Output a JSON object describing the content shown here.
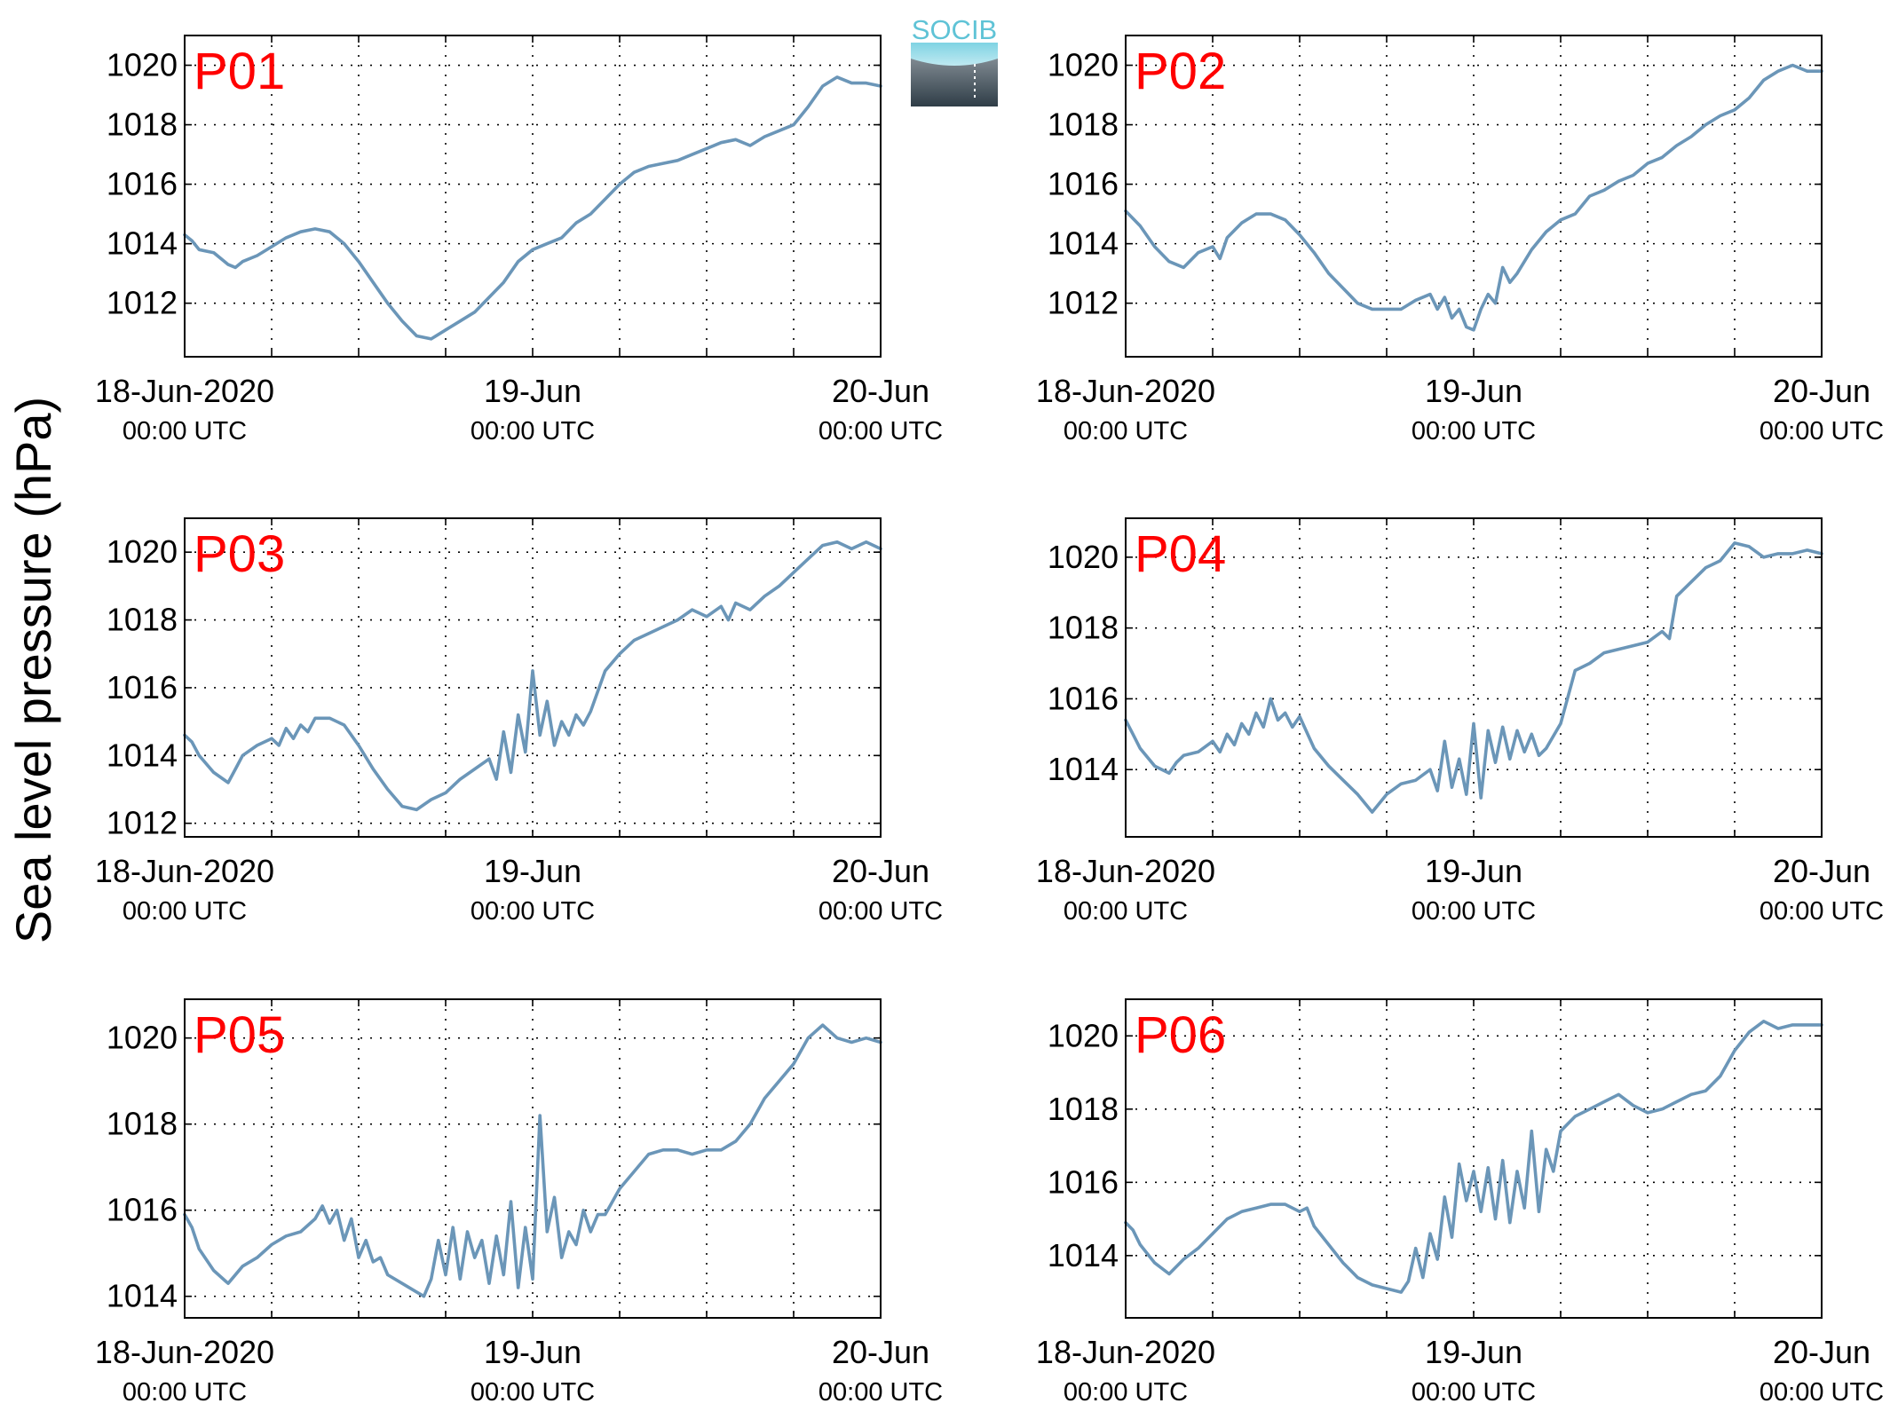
{
  "figure": {
    "ylabel": "Sea level pressure (hPa)",
    "logo_text": "SOCIB",
    "line_color": "#6b96b8",
    "label_color": "#ff0000",
    "logo_text_color": "#5fc3d6"
  },
  "chart_data": [
    {
      "type": "line",
      "panel_label": "P01",
      "xlim": [
        0,
        48
      ],
      "ylim": [
        1010.2,
        1021
      ],
      "yticks": [
        1012,
        1014,
        1016,
        1018,
        1020
      ],
      "xticks": [
        {
          "x": 0,
          "line1": "18-Jun-2020",
          "line2": "00:00 UTC"
        },
        {
          "x": 24,
          "line1": "19-Jun",
          "line2": "00:00 UTC"
        },
        {
          "x": 48,
          "line1": "20-Jun",
          "line2": "00:00 UTC"
        }
      ],
      "grid": true,
      "x": [
        0,
        0.5,
        1,
        2,
        3,
        3.5,
        4,
        5,
        6,
        7,
        8,
        9,
        10,
        11,
        12,
        13,
        14,
        15,
        16,
        17,
        18,
        19,
        20,
        21,
        22,
        23,
        24,
        25,
        26,
        27,
        28,
        29,
        30,
        31,
        32,
        33,
        34,
        35,
        36,
        37,
        38,
        39,
        40,
        41,
        42,
        43,
        44,
        45,
        46,
        47,
        48
      ],
      "y": [
        1014.3,
        1014.1,
        1013.8,
        1013.7,
        1013.3,
        1013.2,
        1013.4,
        1013.6,
        1013.9,
        1014.2,
        1014.4,
        1014.5,
        1014.4,
        1014.0,
        1013.4,
        1012.7,
        1012.0,
        1011.4,
        1010.9,
        1010.8,
        1011.1,
        1011.4,
        1011.7,
        1012.2,
        1012.7,
        1013.4,
        1013.8,
        1014.0,
        1014.2,
        1014.7,
        1015.0,
        1015.5,
        1016.0,
        1016.4,
        1016.6,
        1016.7,
        1016.8,
        1017.0,
        1017.2,
        1017.4,
        1017.5,
        1017.3,
        1017.6,
        1017.8,
        1018.0,
        1018.6,
        1019.3,
        1019.6,
        1019.4,
        1019.4,
        1019.3
      ]
    },
    {
      "type": "line",
      "panel_label": "P02",
      "xlim": [
        0,
        48
      ],
      "ylim": [
        1010.2,
        1021
      ],
      "yticks": [
        1012,
        1014,
        1016,
        1018,
        1020
      ],
      "xticks": [
        {
          "x": 0,
          "line1": "18-Jun-2020",
          "line2": "00:00 UTC"
        },
        {
          "x": 24,
          "line1": "19-Jun",
          "line2": "00:00 UTC"
        },
        {
          "x": 48,
          "line1": "20-Jun",
          "line2": "00:00 UTC"
        }
      ],
      "grid": true,
      "x": [
        0,
        1,
        2,
        3,
        4,
        5,
        6,
        6.5,
        7,
        8,
        9,
        10,
        11,
        12,
        13,
        14,
        15,
        16,
        17,
        18,
        19,
        20,
        21,
        21.5,
        22,
        22.5,
        23,
        23.5,
        24,
        24.5,
        25,
        25.5,
        26,
        26.5,
        27,
        28,
        29,
        30,
        31,
        32,
        33,
        34,
        35,
        36,
        37,
        38,
        39,
        40,
        41,
        42,
        43,
        44,
        45,
        46,
        47,
        48
      ],
      "y": [
        1015.1,
        1014.6,
        1013.9,
        1013.4,
        1013.2,
        1013.7,
        1013.9,
        1013.5,
        1014.2,
        1014.7,
        1015.0,
        1015.0,
        1014.8,
        1014.3,
        1013.7,
        1013.0,
        1012.5,
        1012.0,
        1011.8,
        1011.8,
        1011.8,
        1012.1,
        1012.3,
        1011.8,
        1012.2,
        1011.5,
        1011.8,
        1011.2,
        1011.1,
        1011.8,
        1012.3,
        1012.0,
        1013.2,
        1012.7,
        1013.0,
        1013.8,
        1014.4,
        1014.8,
        1015.0,
        1015.6,
        1015.8,
        1016.1,
        1016.3,
        1016.7,
        1016.9,
        1017.3,
        1017.6,
        1018.0,
        1018.3,
        1018.5,
        1018.9,
        1019.5,
        1019.8,
        1020.0,
        1019.8,
        1019.8
      ]
    },
    {
      "type": "line",
      "panel_label": "P03",
      "xlim": [
        0,
        48
      ],
      "ylim": [
        1011.6,
        1021
      ],
      "yticks": [
        1012,
        1014,
        1016,
        1018,
        1020
      ],
      "xticks": [
        {
          "x": 0,
          "line1": "18-Jun-2020",
          "line2": "00:00 UTC"
        },
        {
          "x": 24,
          "line1": "19-Jun",
          "line2": "00:00 UTC"
        },
        {
          "x": 48,
          "line1": "20-Jun",
          "line2": "00:00 UTC"
        }
      ],
      "grid": true,
      "x": [
        0,
        0.5,
        1,
        2,
        3,
        3.5,
        4,
        5,
        6,
        6.5,
        7,
        7.5,
        8,
        8.5,
        9,
        10,
        11,
        12,
        13,
        14,
        15,
        16,
        17,
        18,
        19,
        20,
        21,
        21.5,
        22,
        22.5,
        23,
        23.5,
        24,
        24.5,
        25,
        25.5,
        26,
        26.5,
        27,
        27.5,
        28,
        29,
        30,
        31,
        32,
        33,
        34,
        35,
        36,
        37,
        37.5,
        38,
        39,
        40,
        41,
        42,
        43,
        44,
        45,
        46,
        47,
        48
      ],
      "y": [
        1014.6,
        1014.4,
        1014.0,
        1013.5,
        1013.2,
        1013.6,
        1014.0,
        1014.3,
        1014.5,
        1014.3,
        1014.8,
        1014.5,
        1014.9,
        1014.7,
        1015.1,
        1015.1,
        1014.9,
        1014.3,
        1013.6,
        1013.0,
        1012.5,
        1012.4,
        1012.7,
        1012.9,
        1013.3,
        1013.6,
        1013.9,
        1013.3,
        1014.7,
        1013.5,
        1015.2,
        1014.1,
        1016.5,
        1014.6,
        1015.6,
        1014.3,
        1015.0,
        1014.6,
        1015.2,
        1014.9,
        1015.3,
        1016.5,
        1017.0,
        1017.4,
        1017.6,
        1017.8,
        1018.0,
        1018.3,
        1018.1,
        1018.4,
        1018.0,
        1018.5,
        1018.3,
        1018.7,
        1019.0,
        1019.4,
        1019.8,
        1020.2,
        1020.3,
        1020.1,
        1020.3,
        1020.1
      ]
    },
    {
      "type": "line",
      "panel_label": "P04",
      "xlim": [
        0,
        48
      ],
      "ylim": [
        1012.1,
        1021.1
      ],
      "yticks": [
        1014,
        1016,
        1018,
        1020
      ],
      "xticks": [
        {
          "x": 0,
          "line1": "18-Jun-2020",
          "line2": "00:00 UTC"
        },
        {
          "x": 24,
          "line1": "19-Jun",
          "line2": "00:00 UTC"
        },
        {
          "x": 48,
          "line1": "20-Jun",
          "line2": "00:00 UTC"
        }
      ],
      "grid": true,
      "x": [
        0,
        0.5,
        1,
        2,
        3,
        3.5,
        4,
        5,
        6,
        6.5,
        7,
        7.5,
        8,
        8.5,
        9,
        9.5,
        10,
        10.5,
        11,
        11.5,
        12,
        13,
        14,
        15,
        16,
        17,
        18,
        19,
        20,
        21,
        21.5,
        22,
        22.5,
        23,
        23.5,
        24,
        24.5,
        25,
        25.5,
        26,
        26.5,
        27,
        27.5,
        28,
        28.5,
        29,
        30,
        31,
        32,
        33,
        34,
        35,
        36,
        37,
        37.5,
        38,
        39,
        40,
        41,
        42,
        43,
        44,
        45,
        46,
        47,
        48
      ],
      "y": [
        1015.4,
        1015.0,
        1014.6,
        1014.1,
        1013.9,
        1014.2,
        1014.4,
        1014.5,
        1014.8,
        1014.5,
        1015.0,
        1014.7,
        1015.3,
        1015.0,
        1015.6,
        1015.2,
        1016.0,
        1015.4,
        1015.6,
        1015.2,
        1015.5,
        1014.6,
        1014.1,
        1013.7,
        1013.3,
        1012.8,
        1013.3,
        1013.6,
        1013.7,
        1014.0,
        1013.4,
        1014.8,
        1013.5,
        1014.3,
        1013.3,
        1015.3,
        1013.2,
        1015.1,
        1014.2,
        1015.2,
        1014.3,
        1015.1,
        1014.5,
        1015.0,
        1014.4,
        1014.6,
        1015.3,
        1016.8,
        1017.0,
        1017.3,
        1017.4,
        1017.5,
        1017.6,
        1017.9,
        1017.7,
        1018.9,
        1019.3,
        1019.7,
        1019.9,
        1020.4,
        1020.3,
        1020.0,
        1020.1,
        1020.1,
        1020.2,
        1020.1
      ]
    },
    {
      "type": "line",
      "panel_label": "P05",
      "xlim": [
        0,
        48
      ],
      "ylim": [
        1013.5,
        1020.9
      ],
      "yticks": [
        1014,
        1016,
        1018,
        1020
      ],
      "xticks": [
        {
          "x": 0,
          "line1": "18-Jun-2020",
          "line2": "00:00 UTC"
        },
        {
          "x": 24,
          "line1": "19-Jun",
          "line2": "00:00 UTC"
        },
        {
          "x": 48,
          "line1": "20-Jun",
          "line2": "00:00 UTC"
        }
      ],
      "grid": true,
      "x": [
        0,
        0.5,
        1,
        2,
        3,
        4,
        5,
        6,
        7,
        8,
        9,
        9.5,
        10,
        10.5,
        11,
        11.5,
        12,
        12.5,
        13,
        13.5,
        14,
        15,
        16,
        16.5,
        17,
        17.5,
        18,
        18.5,
        19,
        19.5,
        20,
        20.5,
        21,
        21.5,
        22,
        22.5,
        23,
        23.5,
        24,
        24.5,
        25,
        25.5,
        26,
        26.5,
        27,
        27.5,
        28,
        28.5,
        29,
        30,
        31,
        32,
        33,
        34,
        35,
        36,
        37,
        38,
        39,
        40,
        41,
        42,
        43,
        44,
        45,
        46,
        47,
        48
      ],
      "y": [
        1015.9,
        1015.6,
        1015.1,
        1014.6,
        1014.3,
        1014.7,
        1014.9,
        1015.2,
        1015.4,
        1015.5,
        1015.8,
        1016.1,
        1015.7,
        1016.0,
        1015.3,
        1015.8,
        1014.9,
        1015.3,
        1014.8,
        1014.9,
        1014.5,
        1014.3,
        1014.1,
        1014.0,
        1014.4,
        1015.3,
        1014.5,
        1015.6,
        1014.4,
        1015.5,
        1014.9,
        1015.3,
        1014.3,
        1015.4,
        1014.5,
        1016.2,
        1014.2,
        1015.6,
        1014.4,
        1018.2,
        1015.5,
        1016.3,
        1014.9,
        1015.5,
        1015.2,
        1016.0,
        1015.5,
        1015.9,
        1015.9,
        1016.5,
        1016.9,
        1017.3,
        1017.4,
        1017.4,
        1017.3,
        1017.4,
        1017.4,
        1017.6,
        1018.0,
        1018.6,
        1019.0,
        1019.4,
        1020.0,
        1020.3,
        1020.0,
        1019.9,
        1020.0,
        1019.9
      ]
    },
    {
      "type": "line",
      "panel_label": "P06",
      "xlim": [
        0,
        48
      ],
      "ylim": [
        1012.3,
        1021
      ],
      "yticks": [
        1014,
        1016,
        1018,
        1020
      ],
      "xticks": [
        {
          "x": 0,
          "line1": "18-Jun-2020",
          "line2": "00:00 UTC"
        },
        {
          "x": 24,
          "line1": "19-Jun",
          "line2": "00:00 UTC"
        },
        {
          "x": 48,
          "line1": "20-Jun",
          "line2": "00:00 UTC"
        }
      ],
      "grid": true,
      "x": [
        0,
        0.5,
        1,
        2,
        3,
        4,
        5,
        6,
        7,
        8,
        9,
        10,
        11,
        12,
        12.5,
        13,
        14,
        15,
        16,
        17,
        18,
        19,
        19.5,
        20,
        20.5,
        21,
        21.5,
        22,
        22.5,
        23,
        23.5,
        24,
        24.5,
        25,
        25.5,
        26,
        26.5,
        27,
        27.5,
        28,
        28.5,
        29,
        29.5,
        30,
        31,
        32,
        33,
        34,
        35,
        36,
        37,
        38,
        39,
        40,
        41,
        42,
        43,
        44,
        45,
        46,
        47,
        48
      ],
      "y": [
        1014.9,
        1014.7,
        1014.3,
        1013.8,
        1013.5,
        1013.9,
        1014.2,
        1014.6,
        1015.0,
        1015.2,
        1015.3,
        1015.4,
        1015.4,
        1015.2,
        1015.3,
        1014.8,
        1014.3,
        1013.8,
        1013.4,
        1013.2,
        1013.1,
        1013.0,
        1013.3,
        1014.2,
        1013.4,
        1014.6,
        1013.9,
        1015.6,
        1014.5,
        1016.5,
        1015.5,
        1016.3,
        1015.2,
        1016.4,
        1015.0,
        1016.6,
        1014.9,
        1016.3,
        1015.3,
        1017.4,
        1015.2,
        1016.9,
        1016.3,
        1017.4,
        1017.8,
        1018.0,
        1018.2,
        1018.4,
        1018.1,
        1017.9,
        1018.0,
        1018.2,
        1018.4,
        1018.5,
        1018.9,
        1019.6,
        1020.1,
        1020.4,
        1020.2,
        1020.3,
        1020.3,
        1020.3
      ]
    }
  ]
}
